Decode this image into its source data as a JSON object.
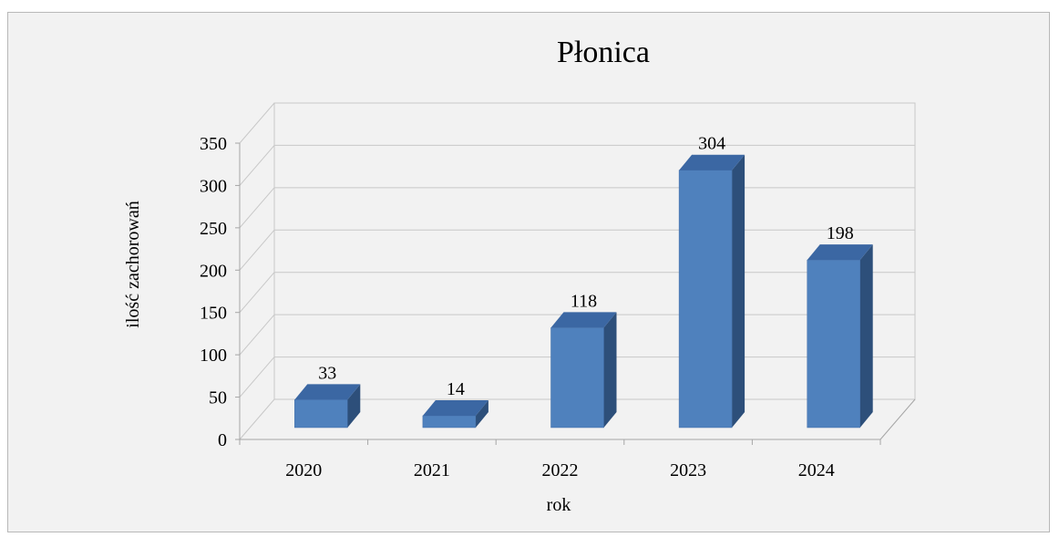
{
  "chart_data": {
    "type": "bar",
    "title": "Płonica",
    "xlabel": "rok",
    "ylabel": "ilość zachorowań",
    "categories": [
      "2020",
      "2021",
      "2022",
      "2023",
      "2024"
    ],
    "values": [
      33,
      14,
      118,
      304,
      198
    ],
    "data_labels": [
      "33",
      "14",
      "118",
      "304",
      "198"
    ],
    "ylim": [
      0,
      350
    ],
    "yticks": [
      "0",
      "50",
      "100",
      "150",
      "200",
      "250",
      "300",
      "350"
    ],
    "grid": true,
    "legend": "none",
    "bar_3d": true,
    "colors": {
      "bar_front": "#4f81bd",
      "bar_top": "#3b67a3",
      "bar_side": "#2d4f7a",
      "background": "#f2f2f2",
      "grid": "#c8c8c8"
    }
  }
}
